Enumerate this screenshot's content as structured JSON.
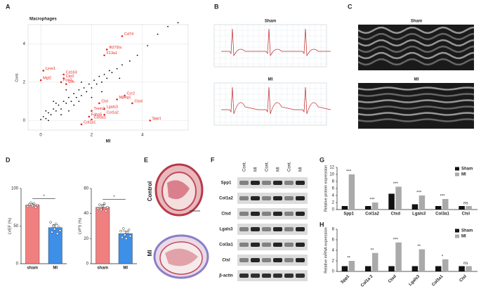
{
  "panels": [
    "A",
    "B",
    "C",
    "D",
    "E",
    "F",
    "G",
    "H"
  ],
  "ecg_labels": [
    "Sham",
    "MI"
  ],
  "echo_labels": [
    "Sham",
    "MI"
  ],
  "histology_labels": [
    "Control",
    "MI"
  ],
  "western": {
    "lanes": [
      "Cont.",
      "MI",
      "Cont.",
      "MI",
      "Cont.",
      "MI"
    ],
    "proteins": [
      "Spp1",
      "Col1a2",
      "Ctsd",
      "Lgals3",
      "Col3a1",
      "Ctsl",
      "β-actin"
    ]
  },
  "chart_data": [
    {
      "type": "scatter",
      "title": "Macrophages",
      "xlabel": "MI",
      "ylabel": "Cont.",
      "xlim": [
        -0.5,
        5.8
      ],
      "ylim": [
        -0.5,
        5
      ],
      "xticks": [
        0,
        2,
        4
      ],
      "yticks": [
        0,
        2,
        4
      ],
      "grid": true,
      "series": [
        {
          "color": "#000000",
          "x": [
            0,
            0.1,
            0.2,
            0.3,
            0.4,
            0.5,
            0.6,
            0.7,
            0.8,
            0.9,
            1.0,
            1.1,
            1.2,
            1.3,
            1.4,
            1.5,
            1.6,
            1.7,
            1.8,
            1.9,
            2.0,
            2.1,
            2.2,
            2.3,
            2.4,
            2.5,
            2.6,
            2.7,
            2.8,
            3.0,
            3.2,
            3.5,
            3.8,
            4.2,
            4.6,
            5.0,
            5.4,
            0.2,
            0.5,
            0.8,
            1.0,
            1.3,
            1.6,
            2.0,
            0.3,
            0.6,
            1.1,
            1.5,
            2.4,
            3.1
          ],
          "y": [
            0.05,
            0.2,
            0.1,
            0.4,
            0.3,
            0.6,
            0.5,
            0.8,
            0.6,
            1.0,
            0.9,
            1.2,
            1.0,
            1.4,
            1.2,
            1.6,
            1.3,
            1.7,
            1.5,
            1.9,
            1.7,
            2.1,
            1.9,
            2.3,
            2.0,
            2.4,
            2.2,
            2.6,
            2.5,
            2.7,
            2.9,
            3.1,
            3.4,
            3.9,
            4.5,
            4.9,
            5.1,
            0.5,
            1.0,
            0.3,
            1.6,
            0.8,
            2.0,
            1.2,
            0.0,
            0.9,
            0.5,
            1.0,
            1.5,
            2.2
          ]
        },
        {
          "color": "#e8231f",
          "labels": [
            "Cd74",
            "Ifi27l2a",
            "F13a1",
            "Lyve1",
            "Cd163",
            "Mgl2",
            "Cbr2",
            "Folr2",
            "Cfh",
            "Ccr2",
            "Mpeg1",
            "Ctsd",
            "Ctsl",
            "Lgals3",
            "Col1a2",
            "Trem2",
            "Fabp5",
            "Col3a1",
            "Col1a1",
            "Spp1"
          ],
          "x": [
            3.2,
            2.6,
            2.5,
            0.1,
            0.9,
            0.0,
            0.9,
            0.8,
            1.0,
            3.3,
            3.0,
            3.6,
            2.3,
            2.5,
            2.5,
            2.0,
            1.9,
            2.0,
            1.6,
            4.3
          ],
          "y": [
            4.4,
            3.7,
            3.4,
            2.6,
            2.4,
            2.1,
            2.2,
            2.0,
            1.9,
            1.3,
            1.1,
            0.9,
            0.9,
            0.6,
            0.3,
            0.5,
            0.2,
            0.05,
            -0.2,
            0.0
          ]
        }
      ]
    },
    {
      "type": "bar",
      "ylabel": "LVEF (%)",
      "categories": [
        "sham",
        "MI"
      ],
      "values": [
        78,
        48
      ],
      "errors": [
        2,
        4
      ],
      "points": [
        [
          76,
          79,
          81,
          77,
          80,
          75,
          78
        ],
        [
          55,
          42,
          50,
          46,
          53,
          40,
          49,
          44
        ]
      ],
      "colors": [
        "#f08080",
        "#3d8fe8"
      ],
      "ylim": [
        0,
        100
      ],
      "yticks": [
        0,
        50,
        100
      ],
      "significance": "*"
    },
    {
      "type": "bar",
      "ylabel": "LVFS (%)",
      "categories": [
        "sham",
        "MI"
      ],
      "values": [
        45,
        24
      ],
      "errors": [
        2,
        2
      ],
      "points": [
        [
          44,
          47,
          43,
          46,
          48,
          42,
          45
        ],
        [
          26,
          21,
          28,
          23,
          20,
          25,
          27,
          22
        ]
      ],
      "colors": [
        "#f08080",
        "#3d8fe8"
      ],
      "ylim": [
        0,
        60
      ],
      "yticks": [
        0,
        20,
        40,
        60
      ],
      "significance": "*"
    },
    {
      "type": "grouped_bar",
      "ylabel": "Relative protein expression",
      "categories": [
        "Spp1",
        "Col1a2",
        "Ctsd",
        "Lgals3",
        "Col3a1",
        "Ctsl"
      ],
      "series": [
        {
          "name": "Sham",
          "color": "#111111",
          "values": [
            1,
            1,
            4.5,
            1.5,
            1,
            1
          ]
        },
        {
          "name": "MI",
          "color": "#aaaaaa",
          "values": [
            10,
            2,
            6.5,
            4,
            3,
            1
          ]
        }
      ],
      "annotations": [
        "***",
        "***",
        "***",
        "***",
        "***",
        "ns"
      ],
      "ylim": [
        0,
        12
      ],
      "yticks": [
        0,
        2,
        4,
        6,
        8,
        10,
        12
      ],
      "legend": "upper right",
      "xtick_rotation": 0
    },
    {
      "type": "grouped_bar",
      "ylabel": "Relative mRNA expression",
      "categories": [
        "Spp1",
        "Col1a 2",
        "Ctsd",
        "Lgals3",
        "Col3a1",
        "Ctsl"
      ],
      "series": [
        {
          "name": "Sham",
          "color": "#111111",
          "values": [
            1,
            1,
            1,
            1,
            1,
            1
          ]
        },
        {
          "name": "MI",
          "color": "#aaaaaa",
          "values": [
            2,
            3.5,
            5.5,
            4.2,
            2.3,
            1
          ]
        }
      ],
      "annotations": [
        "**",
        "**",
        "***",
        "**",
        "*",
        "ns"
      ],
      "ylim": [
        0,
        8
      ],
      "yticks": [
        0,
        2,
        4,
        6,
        8
      ],
      "legend": "upper right",
      "xtick_rotation": -45
    }
  ]
}
